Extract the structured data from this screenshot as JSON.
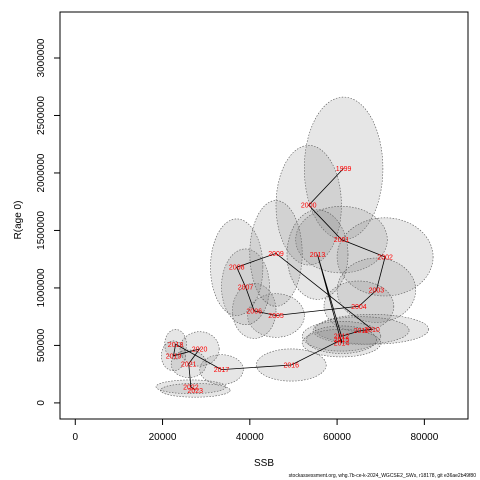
{
  "chart_data": {
    "type": "scatter",
    "title": "",
    "xlabel": "SSB",
    "ylabel": "R(age 0)",
    "xlim": [
      -3500,
      90000
    ],
    "ylim": [
      -140000,
      3400000
    ],
    "x_ticks": [
      0,
      20000,
      40000,
      60000,
      80000
    ],
    "x_tick_labels": [
      "0",
      "20000",
      "40000",
      "60000",
      "80000"
    ],
    "y_ticks": [
      0,
      500000,
      1000000,
      1500000,
      2000000,
      2500000,
      3000000
    ],
    "y_tick_labels": [
      "0",
      "500000",
      "1000000",
      "1500000",
      "2000000",
      "2500000",
      "3000000"
    ],
    "grid": false,
    "legend": "none",
    "colors": {
      "point_label": "#ff0000",
      "ellipse_fill": "#808080",
      "trajectory": "#000000"
    },
    "points": [
      {
        "year": "1999",
        "ssb": 61500,
        "rec": 2040000,
        "ellipse": {
          "sx": 9000,
          "sy": 620000
        }
      },
      {
        "year": "2000",
        "ssb": 53500,
        "rec": 1720000,
        "ellipse": {
          "sx": 7500,
          "sy": 520000
        }
      },
      {
        "year": "2001",
        "ssb": 61000,
        "rec": 1420000,
        "ellipse": {
          "sx": 10500,
          "sy": 290000
        }
      },
      {
        "year": "2002",
        "ssb": 71000,
        "rec": 1270000,
        "ellipse": {
          "sx": 11000,
          "sy": 340000
        }
      },
      {
        "year": "2003",
        "ssb": 69000,
        "rec": 980000,
        "ellipse": {
          "sx": 9000,
          "sy": 280000
        }
      },
      {
        "year": "2004",
        "ssb": 65000,
        "rec": 840000,
        "ellipse": {
          "sx": 8000,
          "sy": 220000
        }
      },
      {
        "year": "2005",
        "ssb": 46000,
        "rec": 760000,
        "ellipse": {
          "sx": 6500,
          "sy": 190000
        }
      },
      {
        "year": "2006",
        "ssb": 41000,
        "rec": 800000,
        "ellipse": {
          "sx": 5000,
          "sy": 240000
        }
      },
      {
        "year": "2007",
        "ssb": 39000,
        "rec": 1010000,
        "ellipse": {
          "sx": 5500,
          "sy": 330000
        }
      },
      {
        "year": "2008",
        "ssb": 37000,
        "rec": 1180000,
        "ellipse": {
          "sx": 6000,
          "sy": 420000
        }
      },
      {
        "year": "2009",
        "ssb": 46000,
        "rec": 1300000,
        "ellipse": {
          "sx": 6000,
          "sy": 460000
        }
      },
      {
        "year": "2013",
        "ssb": 55500,
        "rec": 1290000,
        "ellipse": {
          "sx": 7000,
          "sy": 390000
        }
      },
      {
        "year": "2010",
        "ssb": 68000,
        "rec": 640000,
        "ellipse": {
          "sx": 13000,
          "sy": 130000
        }
      },
      {
        "year": "2011",
        "ssb": 65500,
        "rec": 630000,
        "ellipse": {
          "sx": 11000,
          "sy": 120000
        }
      },
      {
        "year": "2012",
        "ssb": 61000,
        "rec": 580000,
        "ellipse": {
          "sx": 9000,
          "sy": 130000
        }
      },
      {
        "year": "2014",
        "ssb": 61000,
        "rec": 520000,
        "ellipse": {
          "sx": 9000,
          "sy": 120000
        }
      },
      {
        "year": "2015",
        "ssb": 61000,
        "rec": 550000,
        "ellipse": {
          "sx": 8000,
          "sy": 120000
        }
      },
      {
        "year": "2016",
        "ssb": 49500,
        "rec": 330000,
        "ellipse": {
          "sx": 8000,
          "sy": 140000
        }
      },
      {
        "year": "2017",
        "ssb": 33500,
        "rec": 290000,
        "ellipse": {
          "sx": 5000,
          "sy": 130000
        }
      },
      {
        "year": "2018",
        "ssb": 23000,
        "rec": 510000,
        "ellipse": {
          "sx": 2500,
          "sy": 130000
        }
      },
      {
        "year": "2019",
        "ssb": 22500,
        "rec": 410000,
        "ellipse": {
          "sx": 2800,
          "sy": 130000
        }
      },
      {
        "year": "2020",
        "ssb": 28500,
        "rec": 470000,
        "ellipse": {
          "sx": 4500,
          "sy": 150000
        }
      },
      {
        "year": "2021",
        "ssb": 26000,
        "rec": 340000,
        "ellipse": {
          "sx": 4000,
          "sy": 120000
        }
      },
      {
        "year": "2022",
        "ssb": 26500,
        "rec": 140000,
        "ellipse": {
          "sx": 8000,
          "sy": 60000
        }
      },
      {
        "year": "2023",
        "ssb": 27500,
        "rec": 110000,
        "ellipse": {
          "sx": 8000,
          "sy": 60000
        }
      }
    ],
    "trajectory": [
      "1999",
      "2000",
      "2001",
      "2002",
      "2003",
      "2004",
      "2005",
      "2006",
      "2007",
      "2008",
      "2009",
      "2010",
      "2011",
      "2012",
      "2013",
      "2014",
      "2015",
      "2016",
      "2017",
      "2018",
      "2019",
      "2020",
      "2021",
      "2022",
      "2023"
    ]
  },
  "footer": {
    "credit": "stockassessment.org, whg.7b-ce-k-2024_WGCSE2_SWs, r18178, git e36ae2b49f80"
  }
}
